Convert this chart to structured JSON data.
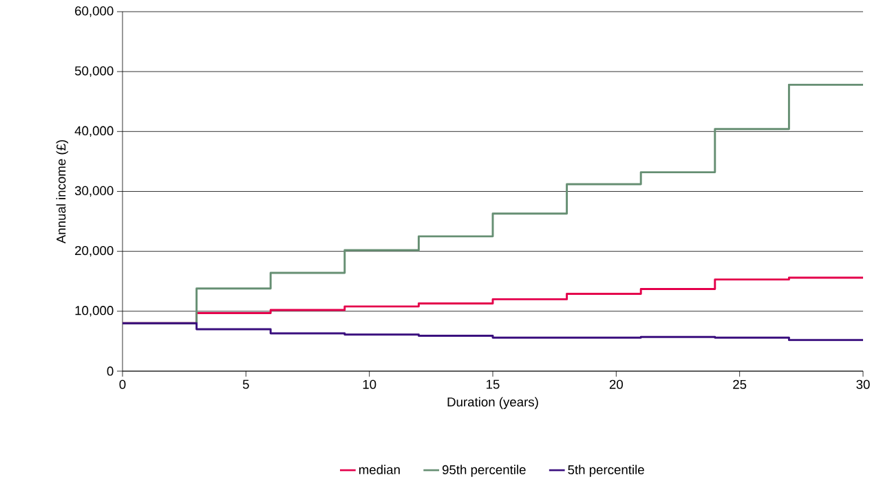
{
  "chart_data": {
    "type": "step",
    "xlabel": "Duration (years)",
    "ylabel": "Annual income (£)",
    "x": [
      0,
      3,
      6,
      9,
      12,
      15,
      18,
      21,
      24,
      27,
      30
    ],
    "series": [
      {
        "name": "median",
        "color": "#e4004b",
        "values": [
          8000,
          9700,
          10200,
          10800,
          11300,
          12000,
          12900,
          13700,
          15300,
          15600,
          15600
        ]
      },
      {
        "name": "95th percentile",
        "color": "#668f73",
        "values": [
          8000,
          13800,
          16400,
          20200,
          22500,
          26300,
          31200,
          33200,
          40400,
          47800,
          47800
        ]
      },
      {
        "name": "5th percentile",
        "color": "#3a0f7e",
        "values": [
          8000,
          7000,
          6300,
          6100,
          5900,
          5600,
          5600,
          5700,
          5600,
          5200,
          5200
        ]
      }
    ],
    "xlim": [
      0,
      30
    ],
    "xticks": [
      0,
      5,
      10,
      15,
      20,
      25,
      30
    ],
    "ylim": [
      0,
      60000
    ],
    "yticks": [
      0,
      {
        "value": 10000,
        "label": "10,000"
      },
      {
        "value": 20000,
        "label": "20,000"
      },
      {
        "value": 30000,
        "label": "30,000"
      },
      {
        "value": 40000,
        "label": "40,000"
      },
      {
        "value": 50000,
        "label": "50,000"
      },
      {
        "value": 60000,
        "label": "60,000"
      }
    ],
    "grid": "y",
    "legend": "bottom",
    "marker": "none",
    "line_style": "solid"
  }
}
